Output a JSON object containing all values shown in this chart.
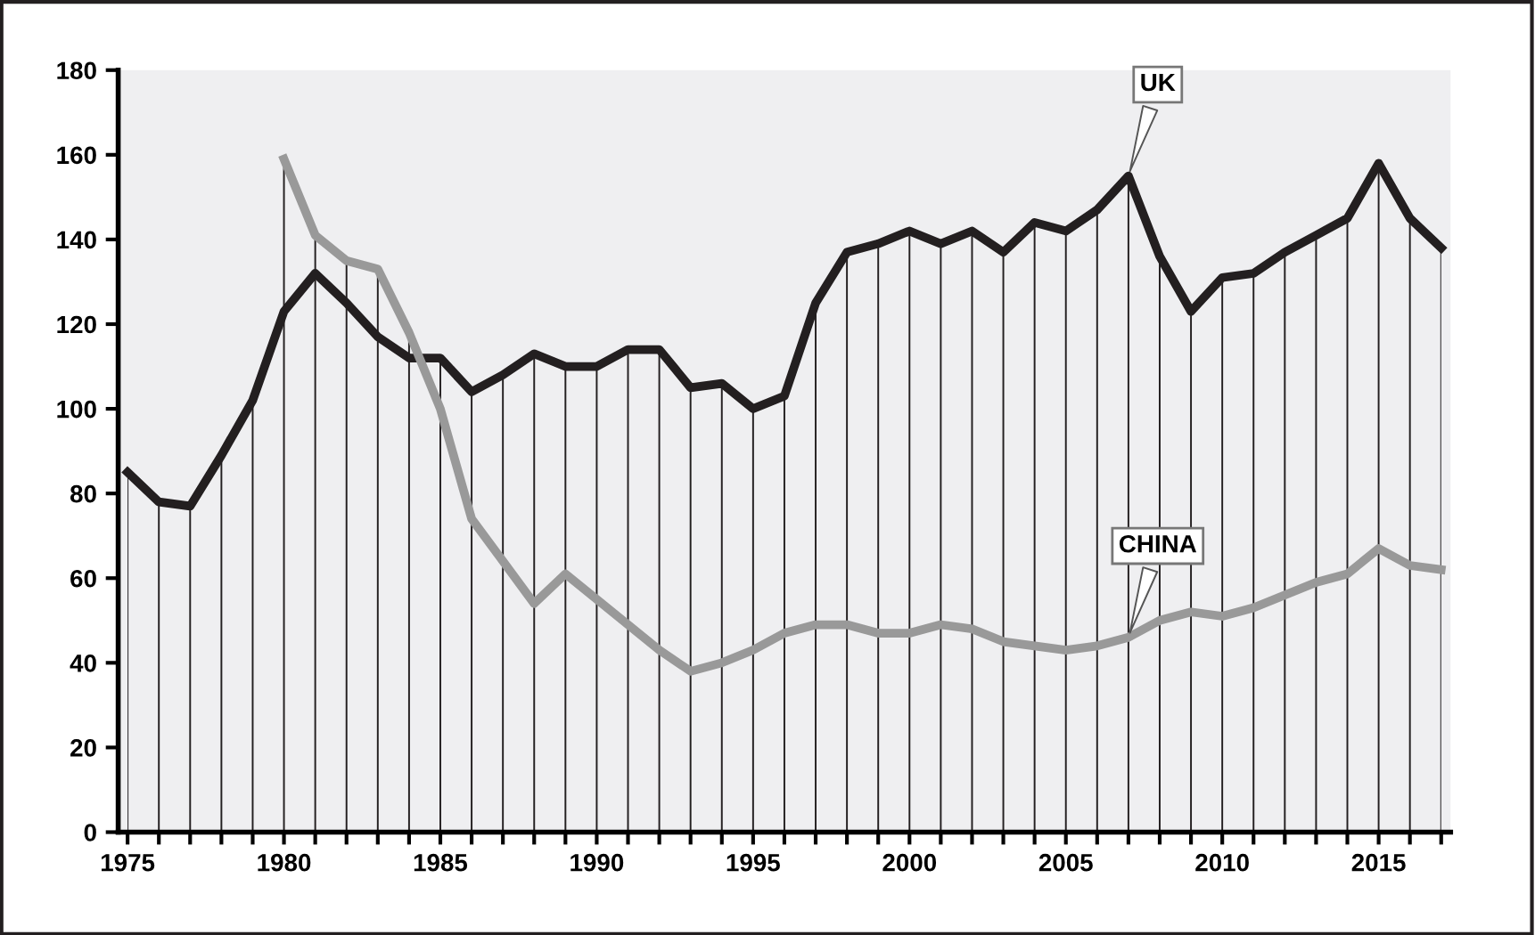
{
  "chart_data": {
    "type": "line",
    "x": [
      1975,
      1976,
      1977,
      1978,
      1979,
      1980,
      1981,
      1982,
      1983,
      1984,
      1985,
      1986,
      1987,
      1988,
      1989,
      1990,
      1991,
      1992,
      1993,
      1994,
      1995,
      1996,
      1997,
      1998,
      1999,
      2000,
      2001,
      2002,
      2003,
      2004,
      2005,
      2006,
      2007,
      2008,
      2009,
      2010,
      2011,
      2012,
      2013,
      2014,
      2015,
      2016,
      2017
    ],
    "series": [
      {
        "name": "UK",
        "color": "#231f20",
        "values": [
          85,
          78,
          77,
          89,
          102,
          123,
          132,
          125,
          117,
          112,
          112,
          104,
          108,
          113,
          110,
          110,
          114,
          114,
          105,
          106,
          100,
          103,
          125,
          137,
          139,
          142,
          139,
          142,
          137,
          144,
          142,
          147,
          155,
          136,
          123,
          131,
          132,
          137,
          141,
          145,
          158,
          145,
          138
        ]
      },
      {
        "name": "CHINA",
        "color": "#999999",
        "values": [
          null,
          null,
          null,
          null,
          null,
          159,
          141,
          135,
          133,
          118,
          100,
          74,
          64,
          54,
          61,
          55,
          49,
          43,
          38,
          40,
          43,
          47,
          49,
          49,
          47,
          47,
          49,
          48,
          45,
          44,
          43,
          44,
          46,
          50,
          52,
          51,
          53,
          56,
          59,
          61,
          67,
          63,
          62
        ]
      }
    ],
    "xlim": [
      1974.7,
      2017.3
    ],
    "xticks": [
      1975,
      {
        "value": 1976,
        "label": null
      },
      {
        "value": 1977,
        "label": null
      },
      {
        "value": 1978,
        "label": null
      },
      {
        "value": 1979,
        "label": null
      },
      1980,
      {
        "value": 1981,
        "label": null
      },
      {
        "value": 1982,
        "label": null
      },
      {
        "value": 1983,
        "label": null
      },
      {
        "value": 1984,
        "label": null
      },
      1985,
      {
        "value": 1986,
        "label": null
      },
      {
        "value": 1987,
        "label": null
      },
      {
        "value": 1988,
        "label": null
      },
      {
        "value": 1989,
        "label": null
      },
      1990,
      {
        "value": 1991,
        "label": null
      },
      {
        "value": 1992,
        "label": null
      },
      {
        "value": 1993,
        "label": null
      },
      {
        "value": 1994,
        "label": null
      },
      1995,
      {
        "value": 1996,
        "label": null
      },
      {
        "value": 1997,
        "label": null
      },
      {
        "value": 1998,
        "label": null
      },
      {
        "value": 1999,
        "label": null
      },
      2000,
      {
        "value": 2001,
        "label": null
      },
      {
        "value": 2002,
        "label": null
      },
      {
        "value": 2003,
        "label": null
      },
      {
        "value": 2004,
        "label": null
      },
      2005,
      {
        "value": 2006,
        "label": null
      },
      {
        "value": 2007,
        "label": null
      },
      {
        "value": 2008,
        "label": null
      },
      {
        "value": 2009,
        "label": null
      },
      2010,
      {
        "value": 2011,
        "label": null
      },
      {
        "value": 2012,
        "label": null
      },
      {
        "value": 2013,
        "label": null
      },
      {
        "value": 2014,
        "label": null
      },
      2015,
      {
        "value": 2016,
        "label": null
      },
      {
        "value": 2017,
        "label": null
      }
    ],
    "ylim": [
      0,
      180
    ],
    "yticks": [
      0,
      20,
      40,
      60,
      80,
      100,
      120,
      140,
      160,
      180
    ],
    "grid": "x",
    "legend": false,
    "marker": "none",
    "line_style": "solid"
  }
}
